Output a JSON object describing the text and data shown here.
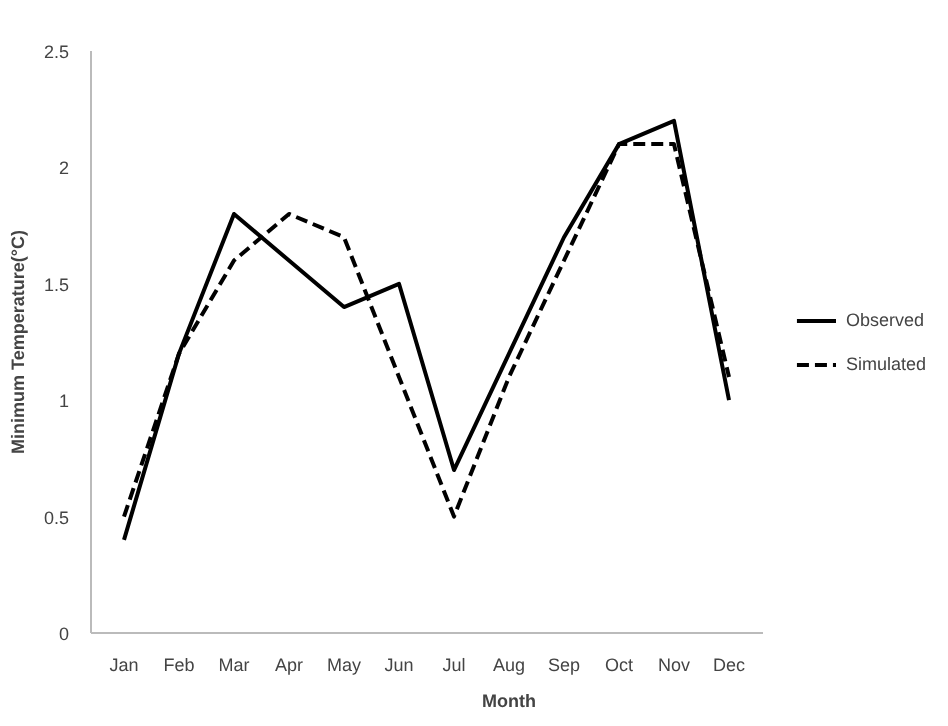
{
  "chart_data": {
    "type": "line",
    "xlabel": "Month",
    "ylabel": "Minimum Temperature(°C)",
    "categories": [
      "Jan",
      "Feb",
      "Mar",
      "Apr",
      "May",
      "Jun",
      "Jul",
      "Aug",
      "Sep",
      "Oct",
      "Nov",
      "Dec"
    ],
    "series": [
      {
        "name": "Observed",
        "color": "#000000",
        "line_style": "solid",
        "values": [
          0.4,
          1.2,
          1.8,
          1.6,
          1.4,
          1.5,
          0.7,
          1.2,
          1.7,
          2.1,
          2.2,
          1.0
        ]
      },
      {
        "name": "Simulated",
        "color": "#000000",
        "line_style": "dashed",
        "values": [
          0.5,
          1.2,
          1.6,
          1.8,
          1.7,
          1.1,
          0.5,
          1.1,
          1.6,
          2.1,
          2.1,
          1.1
        ]
      }
    ],
    "ylim": [
      0,
      2.5
    ],
    "yticks": [
      0,
      0.5,
      1,
      1.5,
      2,
      2.5
    ],
    "grid": false,
    "legend": "right"
  }
}
